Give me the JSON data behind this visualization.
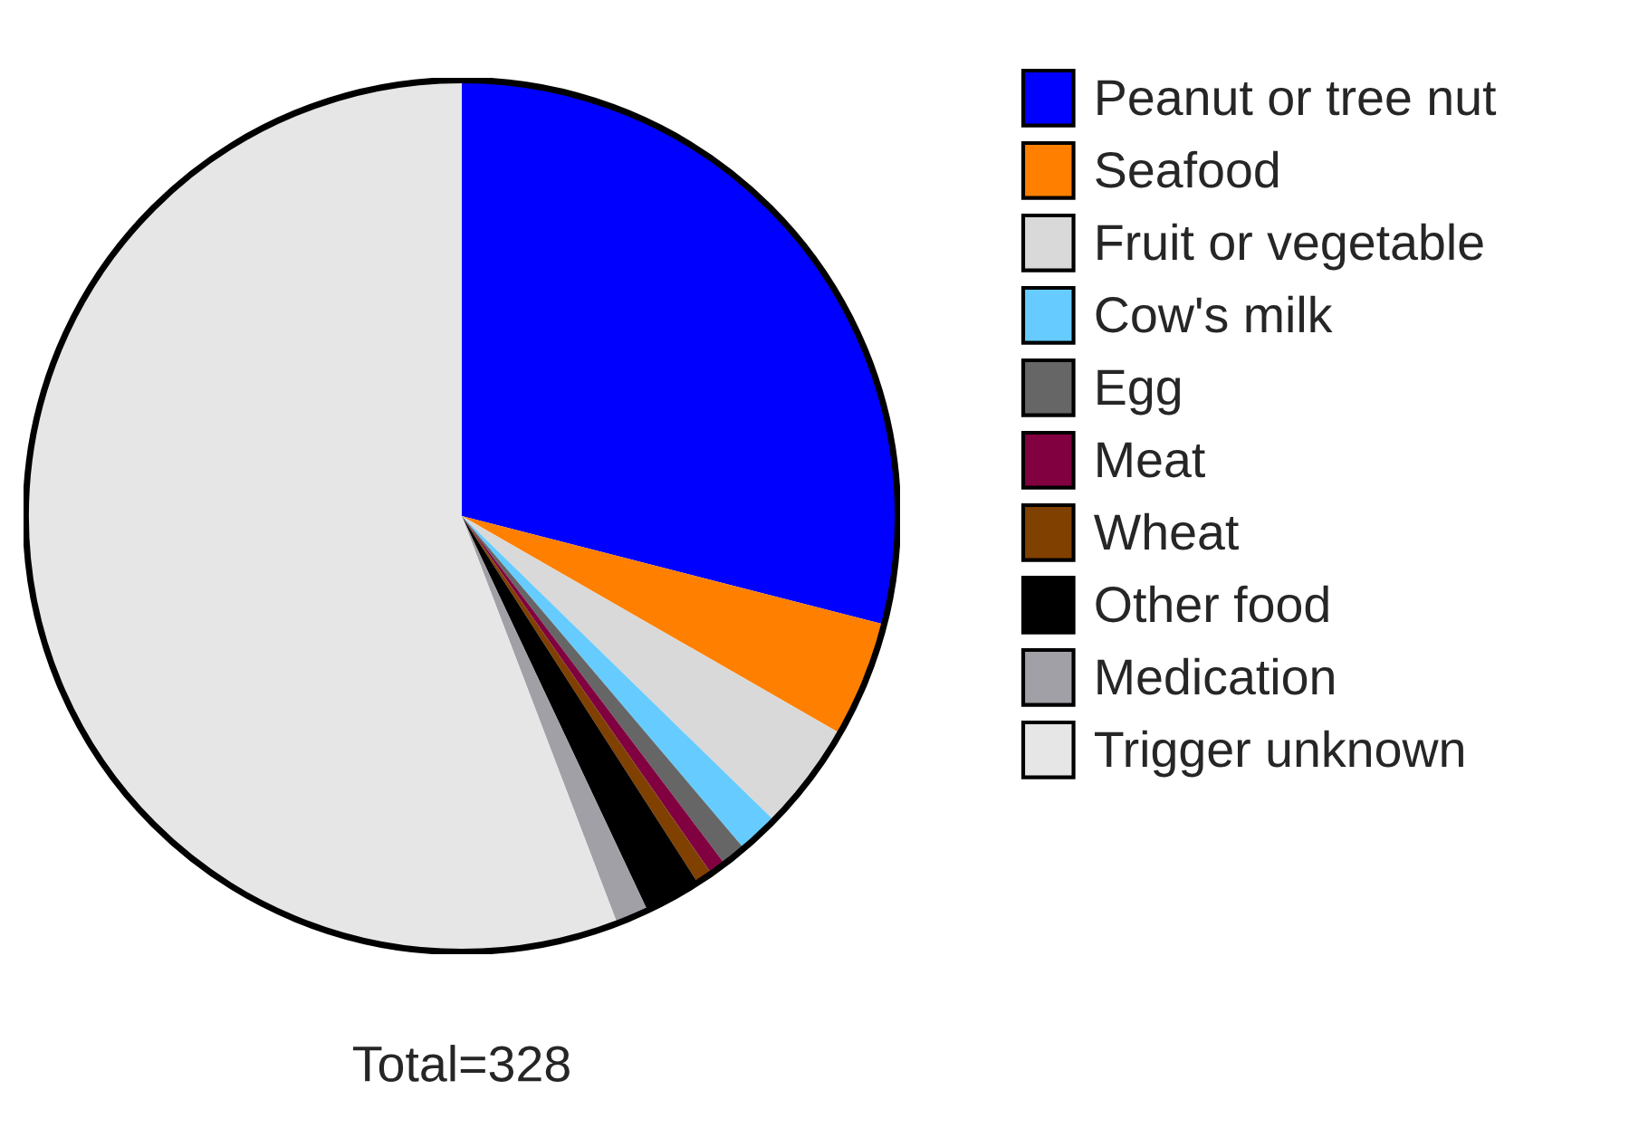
{
  "chart_data": {
    "type": "pie",
    "categories": [
      "Peanut or tree nut",
      "Seafood",
      "Fruit or vegetable",
      "Cow's milk",
      "Egg",
      "Meat",
      "Wheat",
      "Other food",
      "Medication",
      "Trigger unknown"
    ],
    "values": [
      29.0,
      4.3,
      4.0,
      1.5,
      0.9,
      0.6,
      0.6,
      2.1,
      1.2,
      55.8
    ],
    "colors": [
      "#0000ff",
      "#ff8000",
      "#d9d9d9",
      "#66ccff",
      "#666666",
      "#800040",
      "#804000",
      "#000000",
      "#a0a0a6",
      "#e6e6e6"
    ],
    "legend": "right",
    "annotations": [
      "Total=328"
    ]
  }
}
